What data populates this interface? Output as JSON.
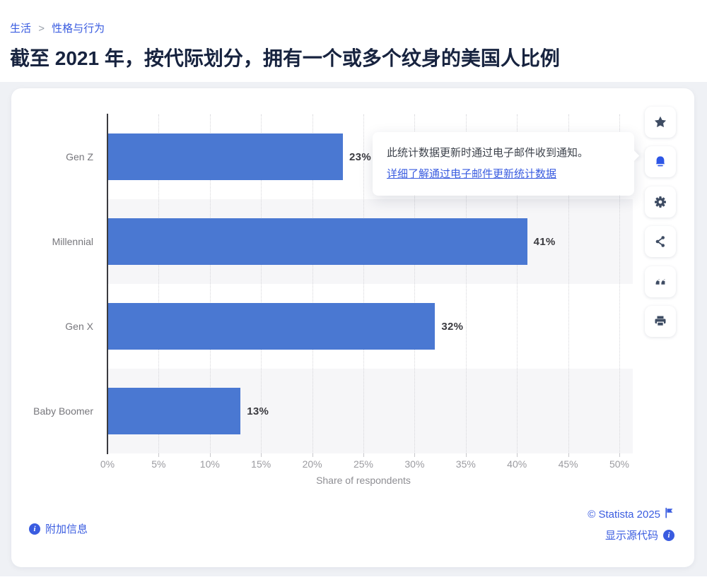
{
  "breadcrumb": {
    "items": [
      {
        "label": "生活"
      },
      {
        "label": "性格与行为"
      }
    ],
    "separator": ">"
  },
  "page_title": "截至 2021 年，按代际划分，拥有一个或多个纹身的美国人比例",
  "tooltip": {
    "text": "此统计数据更新时通过电子邮件收到通知。",
    "link": "详细了解通过电子邮件更新统计数据"
  },
  "toolbar": {
    "buttons": [
      {
        "name": "favorite-star",
        "active": false
      },
      {
        "name": "notification-bell",
        "active": true
      },
      {
        "name": "settings-gear",
        "active": false
      },
      {
        "name": "share",
        "active": false
      },
      {
        "name": "cite-quote",
        "active": false
      },
      {
        "name": "print",
        "active": false
      }
    ]
  },
  "chart_data": {
    "type": "bar",
    "orientation": "horizontal",
    "title": "截至 2021 年，按代际划分，拥有一个或多个纹身的美国人比例",
    "categories": [
      "Gen Z",
      "Millennial",
      "Gen X",
      "Baby Boomer"
    ],
    "values": [
      23,
      41,
      32,
      13
    ],
    "value_suffix": "%",
    "xlabel": "Share of respondents",
    "xlim": [
      0,
      50
    ],
    "x_tick_step": 5,
    "x_ticks": [
      "0%",
      "5%",
      "10%",
      "15%",
      "20%",
      "25%",
      "30%",
      "35%",
      "40%",
      "45%",
      "50%"
    ],
    "grid": "vertical-dotted",
    "legend": "none",
    "bar_color": "#4a78d2",
    "band_colors": [
      "#ffffff",
      "#f6f6f8"
    ]
  },
  "footer": {
    "more_info": "附加信息",
    "copyright": "© Statista 2025",
    "show_source": "显示源代码"
  },
  "colors": {
    "accent_blue": "#3a5ce0",
    "bar_blue": "#4a78d2",
    "icon_slate": "#3e4c63",
    "title_navy": "#17233f"
  }
}
